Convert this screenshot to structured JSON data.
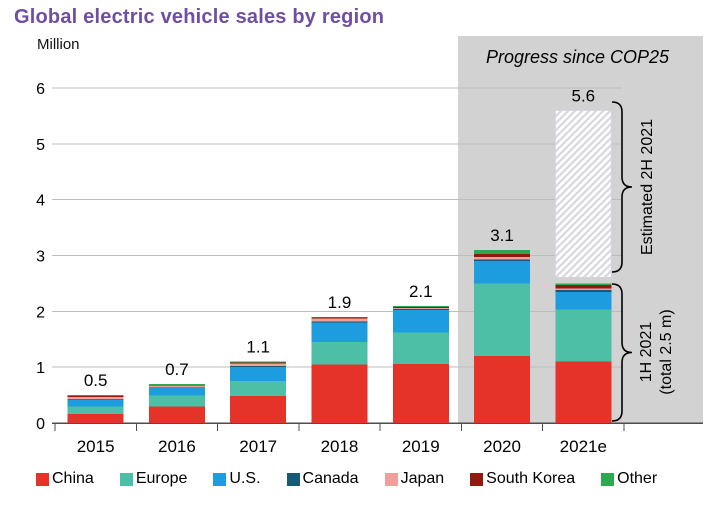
{
  "title": "Global electric vehicle sales by region",
  "unit_label": "Million",
  "annotations": {
    "panel_label": "Progress since COP25",
    "bracket_top_label": "Estimated 2H 2021",
    "bracket_bottom_line1": "1H 2021",
    "bracket_bottom_line2": "(total 2.5 m)"
  },
  "colors": {
    "title": "#6e4fa1",
    "panel_bg": "#d2d2d2",
    "gridline": "#bdbdbd",
    "axis": "#4d4d4d",
    "text": "#000000",
    "hatch_stripe": "#d9d6e0",
    "hatch_bg": "#ffffff",
    "hatch_border": "#d5d2db"
  },
  "chart_data": {
    "type": "bar",
    "stacked": true,
    "title": "Global electric vehicle sales by region",
    "ylabel": "Million",
    "xlabel": "",
    "ylim": [
      0,
      6
    ],
    "yticks": [
      0,
      1,
      2,
      3,
      4,
      5,
      6
    ],
    "grid": true,
    "legend_position": "bottom",
    "categories": [
      "2015",
      "2016",
      "2017",
      "2018",
      "2019",
      "2020",
      "2021e"
    ],
    "series": [
      {
        "name": "China",
        "color": "#e63329",
        "values": [
          0.16,
          0.3,
          0.48,
          1.05,
          1.06,
          1.2,
          1.1
        ]
      },
      {
        "name": "Europe",
        "color": "#4dbfa6",
        "values": [
          0.14,
          0.19,
          0.27,
          0.4,
          0.56,
          1.3,
          0.93
        ]
      },
      {
        "name": "U.S.",
        "color": "#1e9ce0",
        "values": [
          0.12,
          0.14,
          0.25,
          0.35,
          0.4,
          0.4,
          0.32
        ]
      },
      {
        "name": "Canada",
        "color": "#165a77",
        "values": [
          0.01,
          0.01,
          0.02,
          0.02,
          0.02,
          0.03,
          0.03
        ]
      },
      {
        "name": "Japan",
        "color": "#f0a09a",
        "values": [
          0.04,
          0.03,
          0.05,
          0.05,
          0.02,
          0.04,
          0.03
        ]
      },
      {
        "name": "South Korea",
        "color": "#8f1a10",
        "values": [
          0.01,
          0.01,
          0.01,
          0.02,
          0.02,
          0.06,
          0.06
        ]
      },
      {
        "name": "Other",
        "color": "#2ea84e",
        "values": [
          0.02,
          0.02,
          0.02,
          0.01,
          0.02,
          0.07,
          0.03
        ]
      }
    ],
    "totals_labels": [
      "0.5",
      "0.7",
      "1.1",
      "1.9",
      "2.1",
      "3.1",
      "5.6"
    ],
    "estimated_segment": {
      "category": "2021e",
      "from": 2.5,
      "to": 5.6,
      "style": "hatched"
    },
    "highlight_region": {
      "categories": [
        "2020",
        "2021e"
      ],
      "label": "Progress since COP25"
    }
  }
}
